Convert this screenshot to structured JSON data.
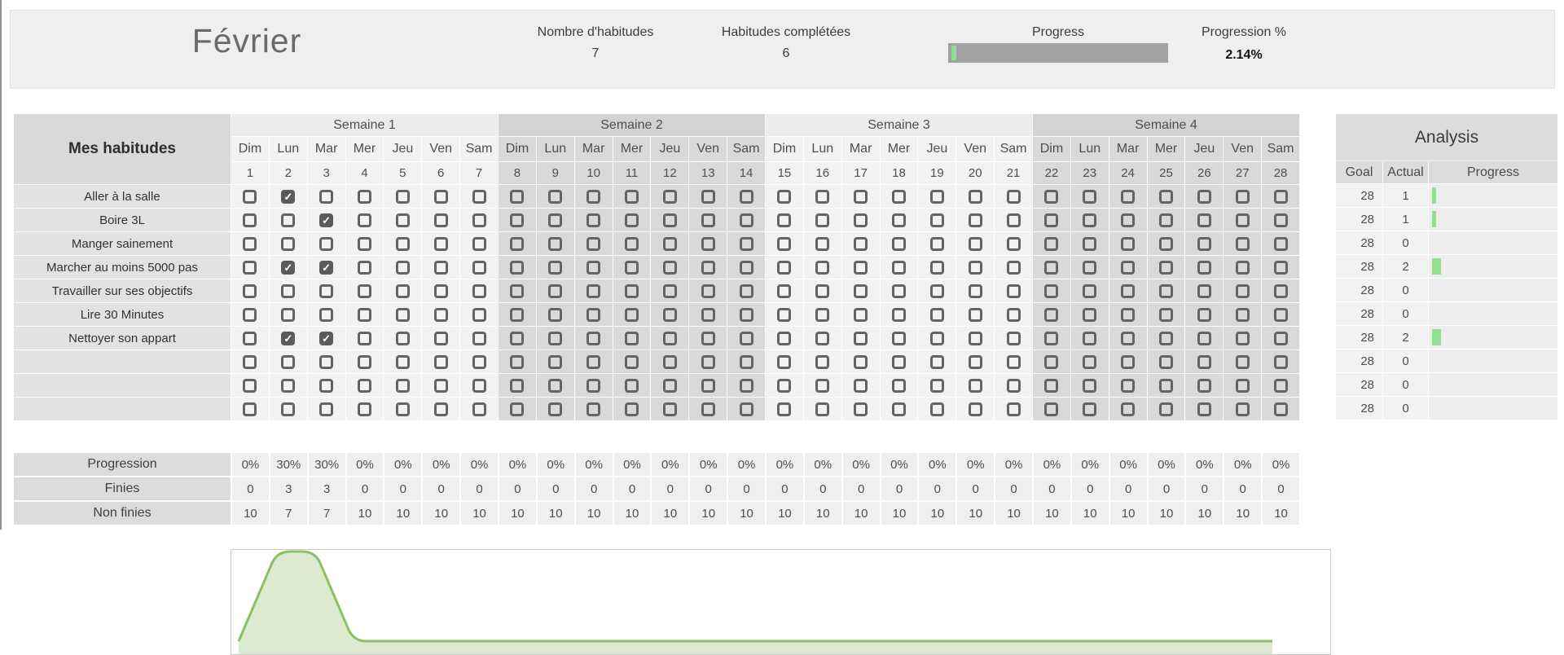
{
  "header": {
    "month_title": "Février",
    "stats": [
      {
        "label": "Nombre d'habitudes",
        "value": "7"
      },
      {
        "label": "Habitudes complétées",
        "value": "6"
      }
    ],
    "progress_label": "Progress",
    "progress_percent": 2.14,
    "progression_label": "Progression  %",
    "progression_value": "2.14%"
  },
  "table": {
    "title": "Mes habitudes",
    "weeks": [
      "Semaine 1",
      "Semaine 2",
      "Semaine 3",
      "Semaine 4"
    ],
    "day_names": [
      "Dim",
      "Lun",
      "Mar",
      "Mer",
      "Jeu",
      "Ven",
      "Sam"
    ],
    "day_numbers": [
      1,
      2,
      3,
      4,
      5,
      6,
      7,
      8,
      9,
      10,
      11,
      12,
      13,
      14,
      15,
      16,
      17,
      18,
      19,
      20,
      21,
      22,
      23,
      24,
      25,
      26,
      27,
      28
    ],
    "habits": [
      {
        "name": "Aller à la salle",
        "checked_days": [
          2
        ]
      },
      {
        "name": "Boire 3L",
        "checked_days": [
          3
        ]
      },
      {
        "name": "Manger sainement",
        "checked_days": []
      },
      {
        "name": "Marcher au moins 5000 pas",
        "checked_days": [
          2,
          3
        ]
      },
      {
        "name": "Travailler sur ses objectifs",
        "checked_days": []
      },
      {
        "name": "Lire 30 Minutes",
        "checked_days": []
      },
      {
        "name": "Nettoyer son appart",
        "checked_days": [
          2,
          3
        ]
      },
      {
        "name": "",
        "checked_days": []
      },
      {
        "name": "",
        "checked_days": []
      },
      {
        "name": "",
        "checked_days": []
      }
    ]
  },
  "analysis": {
    "title": "Analysis",
    "columns": [
      "Goal",
      "Actual",
      "Progress"
    ],
    "rows": [
      {
        "goal": 28,
        "actual": 1
      },
      {
        "goal": 28,
        "actual": 1
      },
      {
        "goal": 28,
        "actual": 0
      },
      {
        "goal": 28,
        "actual": 2
      },
      {
        "goal": 28,
        "actual": 0
      },
      {
        "goal": 28,
        "actual": 0
      },
      {
        "goal": 28,
        "actual": 2
      },
      {
        "goal": 28,
        "actual": 0
      },
      {
        "goal": 28,
        "actual": 0
      },
      {
        "goal": 28,
        "actual": 0
      }
    ]
  },
  "summary": {
    "rows": [
      {
        "label": "Progression",
        "values": [
          "0%",
          "30%",
          "30%",
          "0%",
          "0%",
          "0%",
          "0%",
          "0%",
          "0%",
          "0%",
          "0%",
          "0%",
          "0%",
          "0%",
          "0%",
          "0%",
          "0%",
          "0%",
          "0%",
          "0%",
          "0%",
          "0%",
          "0%",
          "0%",
          "0%",
          "0%",
          "0%",
          "0%"
        ]
      },
      {
        "label": "Finies",
        "values": [
          "0",
          "3",
          "3",
          "0",
          "0",
          "0",
          "0",
          "0",
          "0",
          "0",
          "0",
          "0",
          "0",
          "0",
          "0",
          "0",
          "0",
          "0",
          "0",
          "0",
          "0",
          "0",
          "0",
          "0",
          "0",
          "0",
          "0",
          "0"
        ]
      },
      {
        "label": "Non finies",
        "values": [
          "10",
          "7",
          "7",
          "10",
          "10",
          "10",
          "10",
          "10",
          "10",
          "10",
          "10",
          "10",
          "10",
          "10",
          "10",
          "10",
          "10",
          "10",
          "10",
          "10",
          "10",
          "10",
          "10",
          "10",
          "10",
          "10",
          "10",
          "10"
        ]
      }
    ]
  },
  "chart_data": {
    "type": "area",
    "x": [
      1,
      2,
      3,
      4,
      5,
      6,
      7,
      8,
      9,
      10,
      11,
      12,
      13,
      14,
      15,
      16,
      17,
      18,
      19,
      20,
      21,
      22,
      23,
      24,
      25,
      26,
      27,
      28
    ],
    "values": [
      0,
      30,
      30,
      0,
      0,
      0,
      0,
      0,
      0,
      0,
      0,
      0,
      0,
      0,
      0,
      0,
      0,
      0,
      0,
      0,
      0,
      0,
      0,
      0,
      0,
      0,
      0,
      0
    ],
    "series_name": "Progression",
    "ylim": [
      0,
      30
    ],
    "grid": false,
    "legend": "none"
  },
  "colors": {
    "accent_green": "#93e093",
    "chart_stroke": "#8bc062",
    "chart_fill": "#dcead0",
    "checked_box": "#5b5b5b",
    "header_band": "#efefef",
    "dark_cell": "#d9d9d9",
    "light_cell": "#f2f2f2",
    "progress_bar_gray": "#a2a2a2"
  }
}
